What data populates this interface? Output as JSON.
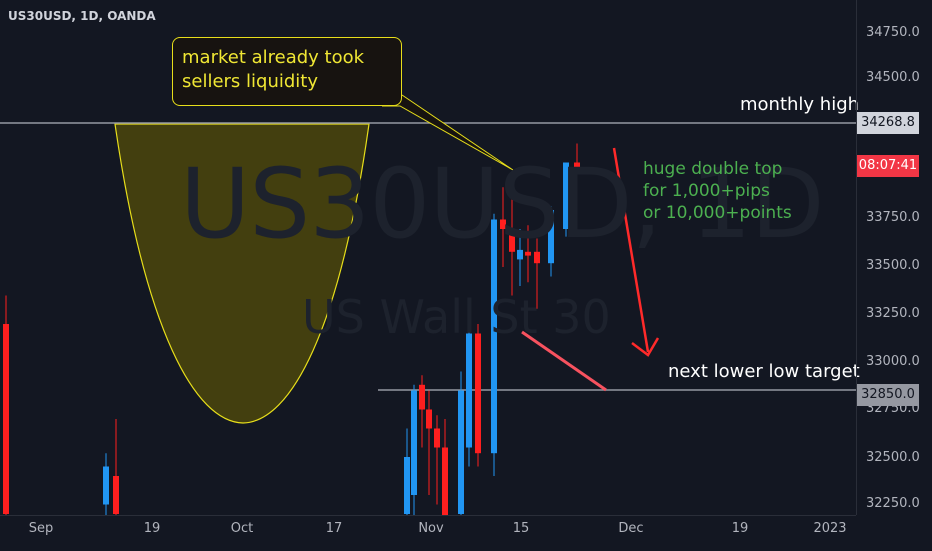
{
  "header": {
    "symbol_title": "US30USD, 1D, OANDA"
  },
  "watermark": {
    "main": "US30USD, 1D",
    "sub": "US Wall St 30"
  },
  "annotations": {
    "callout_lines": [
      "market already took",
      "sellers liquidity"
    ],
    "green_note_lines": [
      "huge double top",
      "for 1,000+pips",
      "or 10,000+points"
    ],
    "monthly_high_label": "monthly high",
    "target_label": "next lower low target"
  },
  "colors": {
    "background": "#131722",
    "up_candle": "#2196f3",
    "down_candle": "#ff1f1f",
    "callout_border": "#e7de1a",
    "callout_text": "#efe634",
    "note_text": "#4cb050",
    "level_line": "#9598a1",
    "arrow_red": "#ff2a2a",
    "countdown_bg": "#f23645"
  },
  "price_axis": {
    "ticks": [
      "34750.0",
      "34500.0",
      "33750.0",
      "33500.0",
      "33250.0",
      "33000.0",
      "32750.0",
      "32500.0",
      "32250.0"
    ],
    "monthly_high_badge": "34268.8",
    "countdown_badge": "08:07:41",
    "target_badge": "32850.0"
  },
  "time_axis": {
    "ticks": [
      "Sep",
      "19",
      "Oct",
      "17",
      "Nov",
      "15",
      "Dec",
      "19",
      "2023"
    ]
  },
  "chart_data": {
    "type": "candlestick",
    "symbol": "US30USD",
    "timeframe": "1D",
    "exchange": "OANDA",
    "ylim": [
      32200,
      34900
    ],
    "levels": [
      {
        "name": "monthly high",
        "price": 34268.8
      },
      {
        "name": "next lower low target",
        "price": 32850.0
      }
    ],
    "candles": [
      {
        "period": "early Sep",
        "open": 33200,
        "high": 33350,
        "low": 32150,
        "close": 32200
      },
      {
        "period": "mid Sep a",
        "open": 32250,
        "high": 32520,
        "low": 32150,
        "close": 32450
      },
      {
        "period": "mid Sep b",
        "open": 32400,
        "high": 32700,
        "low": 32150,
        "close": 32200
      },
      {
        "period": "Nov 1",
        "open": 32200,
        "high": 32650,
        "low": 32050,
        "close": 32500
      },
      {
        "period": "Nov 2",
        "open": 32300,
        "high": 32880,
        "low": 32150,
        "close": 32850
      },
      {
        "period": "Nov 3",
        "open": 32880,
        "high": 32930,
        "low": 32550,
        "close": 32750
      },
      {
        "period": "Nov 4",
        "open": 32750,
        "high": 32850,
        "low": 32300,
        "close": 32650
      },
      {
        "period": "Nov 7",
        "open": 32650,
        "high": 32720,
        "low": 32250,
        "close": 32550
      },
      {
        "period": "Nov 8",
        "open": 32550,
        "high": 32700,
        "low": 32100,
        "close": 32120
      },
      {
        "period": "Nov 9",
        "open": 32200,
        "high": 32950,
        "low": 32180,
        "close": 32850
      },
      {
        "period": "Nov 10",
        "open": 32550,
        "high": 33180,
        "low": 32450,
        "close": 33150
      },
      {
        "period": "Nov 11",
        "open": 33150,
        "high": 33200,
        "low": 32450,
        "close": 32520
      },
      {
        "period": "Nov 14",
        "open": 32520,
        "high": 33780,
        "low": 32400,
        "close": 33750
      },
      {
        "period": "Nov 15",
        "open": 33750,
        "high": 33920,
        "low": 33500,
        "close": 33700
      },
      {
        "period": "Nov 16",
        "open": 33700,
        "high": 33980,
        "low": 33350,
        "close": 33580
      },
      {
        "period": "Nov 17",
        "open": 33540,
        "high": 33700,
        "low": 33400,
        "close": 33590
      },
      {
        "period": "Nov 18",
        "open": 33580,
        "high": 33720,
        "low": 33420,
        "close": 33560
      },
      {
        "period": "Nov 21",
        "open": 33580,
        "high": 33650,
        "low": 33280,
        "close": 33520
      },
      {
        "period": "Nov 22",
        "open": 33520,
        "high": 33820,
        "low": 33450,
        "close": 33800
      },
      {
        "period": "Nov 23",
        "open": 33700,
        "high": 34050,
        "low": 33660,
        "close": 34050
      },
      {
        "period": "Nov 24",
        "open": 34050,
        "high": 34150,
        "low": 33980,
        "close": 34020
      }
    ]
  }
}
